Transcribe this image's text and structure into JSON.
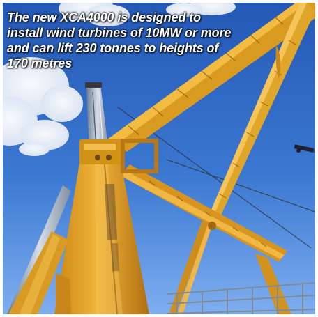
{
  "caption": {
    "text": "The new XCA4000 is designed to install wind turbines of 10MW or more and can lift 230 tonnes to heights of 170 metres"
  },
  "photo": {
    "subject": "yellow-crane-lattice-boom",
    "colors": {
      "sky_top": "#2a63bf",
      "sky_bottom": "#6ea2e8",
      "cloud": "#f5f7fb",
      "crane_yellow": "#e4a727",
      "crane_shadow": "#b67712",
      "steel": "#9aa8b7",
      "dark": "#2f2a20"
    }
  }
}
